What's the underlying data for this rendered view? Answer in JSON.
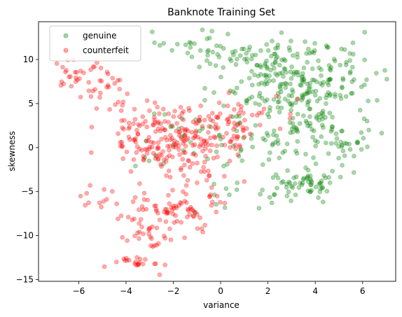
{
  "chart_data": {
    "type": "scatter",
    "title": "Banknote Training Set",
    "xlabel": "variance",
    "ylabel": "skewness",
    "xlim": [
      -7.7,
      7.4
    ],
    "ylim": [
      -15.2,
      14.3
    ],
    "xticks": [
      -6,
      -4,
      -2,
      0,
      2,
      4,
      6
    ],
    "yticks": [
      -15,
      -10,
      -5,
      0,
      5,
      10
    ],
    "grid": false,
    "legend_position": "top-left",
    "series": [
      {
        "name": "genuine",
        "color": "#008000",
        "clusters": [
          {
            "cx": 3.6,
            "cy": 8.0,
            "sx": 1.6,
            "sy": 2.1,
            "n": 180
          },
          {
            "cx": 1.5,
            "cy": 8.5,
            "sx": 1.0,
            "sy": 2.3,
            "n": 60
          },
          {
            "cx": 0.2,
            "cy": 10.6,
            "sx": 0.9,
            "sy": 1.0,
            "n": 25
          },
          {
            "cx": -1.6,
            "cy": 11.6,
            "sx": 0.6,
            "sy": 0.8,
            "n": 14
          },
          {
            "cx": 3.5,
            "cy": 2.0,
            "sx": 1.6,
            "sy": 2.0,
            "n": 110
          },
          {
            "cx": 3.8,
            "cy": -4.0,
            "sx": 0.8,
            "sy": 0.9,
            "n": 55
          },
          {
            "cx": 1.5,
            "cy": -5.5,
            "sx": 1.2,
            "sy": 0.9,
            "n": 22
          },
          {
            "cx": -0.5,
            "cy": 1.0,
            "sx": 1.4,
            "sy": 1.8,
            "n": 45
          },
          {
            "cx": 5.4,
            "cy": 0.6,
            "sx": 0.5,
            "sy": 1.0,
            "n": 10
          }
        ]
      },
      {
        "name": "counterfeit",
        "color": "#ff0000",
        "clusters": [
          {
            "cx": -6.2,
            "cy": 8.4,
            "sx": 0.6,
            "sy": 1.1,
            "n": 28
          },
          {
            "cx": -5.0,
            "cy": 6.9,
            "sx": 0.6,
            "sy": 1.4,
            "n": 20
          },
          {
            "cx": -3.2,
            "cy": 2.4,
            "sx": 1.0,
            "sy": 1.5,
            "n": 60
          },
          {
            "cx": -1.1,
            "cy": 1.7,
            "sx": 1.2,
            "sy": 1.3,
            "n": 80
          },
          {
            "cx": 0.8,
            "cy": 2.9,
            "sx": 1.0,
            "sy": 1.3,
            "n": 50
          },
          {
            "cx": -2.4,
            "cy": -0.5,
            "sx": 1.1,
            "sy": 1.2,
            "n": 70
          },
          {
            "cx": -1.9,
            "cy": -6.8,
            "sx": 1.0,
            "sy": 1.1,
            "n": 70
          },
          {
            "cx": -3.0,
            "cy": -9.5,
            "sx": 0.7,
            "sy": 1.2,
            "n": 35
          },
          {
            "cx": -3.6,
            "cy": -13.0,
            "sx": 0.6,
            "sy": 0.5,
            "n": 22
          },
          {
            "cx": -5.0,
            "cy": -5.8,
            "sx": 0.5,
            "sy": 1.0,
            "n": 12
          },
          {
            "cx": -1.5,
            "cy": -2.5,
            "sx": 0.8,
            "sy": 1.0,
            "n": 25
          }
        ]
      }
    ]
  }
}
